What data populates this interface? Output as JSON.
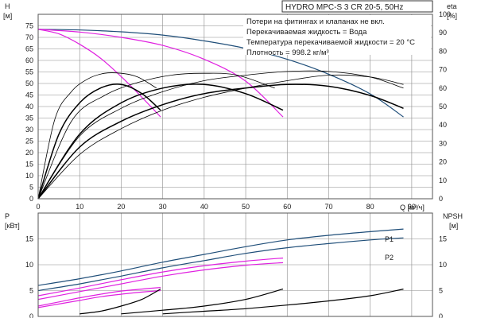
{
  "title": "HYDRO MPC-S 3 CR 20-5, 50Hz",
  "notes": [
    "Потери на фитингах и клапанах не вкл.",
    "Перекачиваемая жидкость = Вода",
    "Температура перекачиваемой жидкости = 20 °C",
    "Плотность = 998.2 кг/м³"
  ],
  "colors": {
    "pump_curve": "#1f4e79",
    "setpoint_curve": "#e020e0",
    "efficiency": "#000000",
    "grid": "#8c8c8c"
  },
  "chart_data": [
    {
      "type": "line",
      "panel": "head-efficiency",
      "xlabel": "Q [м³/ч]",
      "ylabel": "H [м]",
      "ylabel_right": "eta [%]",
      "xlim": [
        0,
        95
      ],
      "ylim": [
        0,
        80
      ],
      "ylim_right": [
        0,
        100
      ],
      "xticks": [
        0,
        10,
        20,
        30,
        40,
        50,
        60,
        70,
        80,
        90
      ],
      "yticks": [
        0,
        5,
        10,
        15,
        20,
        25,
        30,
        35,
        40,
        45,
        50,
        55,
        60,
        65,
        70,
        75
      ],
      "yticks_right": [
        0,
        10,
        20,
        30,
        40,
        50,
        60,
        70,
        80,
        90,
        100
      ],
      "series": [
        {
          "role": "head",
          "color_key": "pump_curve",
          "x": [
            0,
            10,
            20,
            30,
            40,
            50,
            60,
            70,
            80,
            88
          ],
          "y": [
            73.5,
            73.2,
            72.4,
            71.0,
            68.5,
            65.2,
            60.5,
            54.0,
            45.5,
            35.5
          ]
        },
        {
          "role": "head",
          "color_key": "setpoint_curve",
          "x": [
            0,
            5,
            10,
            15,
            20,
            25,
            29.5
          ],
          "y": [
            73.5,
            71.5,
            67.0,
            61.0,
            53.0,
            44.0,
            35.5
          ]
        },
        {
          "role": "head",
          "color_key": "setpoint_curve",
          "x": [
            0,
            10,
            20,
            30,
            40,
            50,
            59
          ],
          "y": [
            73.5,
            72.3,
            70.0,
            66.5,
            60.5,
            51.0,
            35.5
          ]
        },
        {
          "role": "efficiency",
          "axis": "right",
          "width": 1.5,
          "x": [
            0,
            5,
            10,
            15,
            20,
            25,
            29.5
          ],
          "y": [
            0,
            35,
            52,
            60,
            62,
            57,
            48
          ]
        },
        {
          "role": "efficiency",
          "axis": "right",
          "width": 1.5,
          "x": [
            0,
            10,
            20,
            30,
            40,
            50,
            59
          ],
          "y": [
            0,
            35,
            52,
            60,
            62,
            57,
            48
          ]
        },
        {
          "role": "efficiency",
          "axis": "right",
          "width": 1.5,
          "x": [
            0,
            10,
            20,
            30,
            40,
            50,
            60,
            70,
            80,
            88
          ],
          "y": [
            0,
            28,
            42,
            51,
            57,
            60,
            62,
            61,
            56,
            49
          ]
        },
        {
          "role": "efficiency-thin",
          "axis": "right",
          "width": 0.8,
          "x": [
            0,
            4,
            8,
            12,
            16,
            20,
            24,
            28.5
          ],
          "y": [
            0,
            43,
            58,
            65,
            68,
            68,
            66,
            60
          ]
        },
        {
          "role": "efficiency-thin",
          "axis": "right",
          "width": 0.8,
          "x": [
            0,
            8,
            16,
            24,
            32,
            40,
            48,
            57
          ],
          "y": [
            0,
            42,
            56,
            63,
            67,
            68,
            67,
            60
          ]
        },
        {
          "role": "efficiency-thin",
          "axis": "right",
          "width": 0.8,
          "x": [
            0,
            10,
            20,
            30,
            40,
            50,
            60,
            70,
            80,
            88
          ],
          "y": [
            0,
            34,
            49,
            58,
            64,
            67,
            69,
            69,
            66,
            60
          ]
        },
        {
          "role": "efficiency-thin",
          "axis": "right",
          "width": 0.8,
          "x": [
            0,
            10,
            20,
            30,
            40,
            50,
            60,
            70,
            80,
            88
          ],
          "y": [
            0,
            24,
            38,
            48,
            55,
            60,
            64,
            67,
            66,
            62
          ]
        }
      ]
    },
    {
      "type": "line",
      "panel": "power-npsh",
      "xlim": [
        0,
        95
      ],
      "ylim": [
        0,
        20
      ],
      "ylabel": "P [кВт]",
      "ylabel_right": "NPSH [м]",
      "yticks": [
        0,
        5,
        10,
        15
      ],
      "yticks_right": [
        0,
        5,
        10,
        15
      ],
      "series": [
        {
          "name": "P1",
          "role": "power",
          "color_key": "pump_curve",
          "x": [
            0,
            10,
            20,
            30,
            40,
            50,
            60,
            70,
            80,
            88
          ],
          "y": [
            6.0,
            7.3,
            8.8,
            10.5,
            12.0,
            13.5,
            14.8,
            15.7,
            16.4,
            16.9
          ]
        },
        {
          "name": "P2",
          "role": "power",
          "color_key": "pump_curve",
          "x": [
            0,
            10,
            20,
            30,
            40,
            50,
            60,
            70,
            80,
            88
          ],
          "y": [
            5.0,
            6.3,
            7.8,
            9.4,
            10.8,
            12.2,
            13.3,
            14.1,
            14.8,
            15.2
          ]
        },
        {
          "role": "power",
          "color_key": "setpoint_curve",
          "x": [
            0,
            10,
            20,
            30,
            40,
            50,
            59
          ],
          "y": [
            4.0,
            5.5,
            7.1,
            8.6,
            9.8,
            10.7,
            11.3
          ]
        },
        {
          "role": "power",
          "color_key": "setpoint_curve",
          "x": [
            0,
            10,
            20,
            30,
            40,
            50,
            59
          ],
          "y": [
            3.3,
            4.8,
            6.3,
            7.8,
            9.0,
            9.9,
            10.4
          ]
        },
        {
          "role": "power",
          "color_key": "setpoint_curve",
          "x": [
            0,
            5,
            10,
            15,
            20,
            25,
            29.5
          ],
          "y": [
            2.0,
            2.8,
            3.6,
            4.3,
            4.9,
            5.3,
            5.6
          ]
        },
        {
          "role": "power",
          "color_key": "setpoint_curve",
          "x": [
            0,
            5,
            10,
            15,
            20,
            25,
            29.5
          ],
          "y": [
            1.7,
            2.4,
            3.1,
            3.8,
            4.3,
            4.7,
            5.0
          ]
        },
        {
          "role": "npsh",
          "axis": "right",
          "color_key": "efficiency",
          "x": [
            10,
            15,
            20,
            25,
            29.5
          ],
          "y": [
            0.5,
            1.0,
            2.0,
            3.3,
            5.3
          ]
        },
        {
          "role": "npsh",
          "axis": "right",
          "color_key": "efficiency",
          "x": [
            20,
            30,
            40,
            50,
            59
          ],
          "y": [
            0.5,
            1.2,
            2.0,
            3.3,
            5.3
          ]
        },
        {
          "role": "npsh",
          "axis": "right",
          "color_key": "efficiency",
          "x": [
            30,
            40,
            50,
            60,
            70,
            80,
            88
          ],
          "y": [
            0.5,
            1.0,
            1.5,
            2.2,
            3.0,
            4.0,
            5.3
          ]
        }
      ]
    }
  ]
}
